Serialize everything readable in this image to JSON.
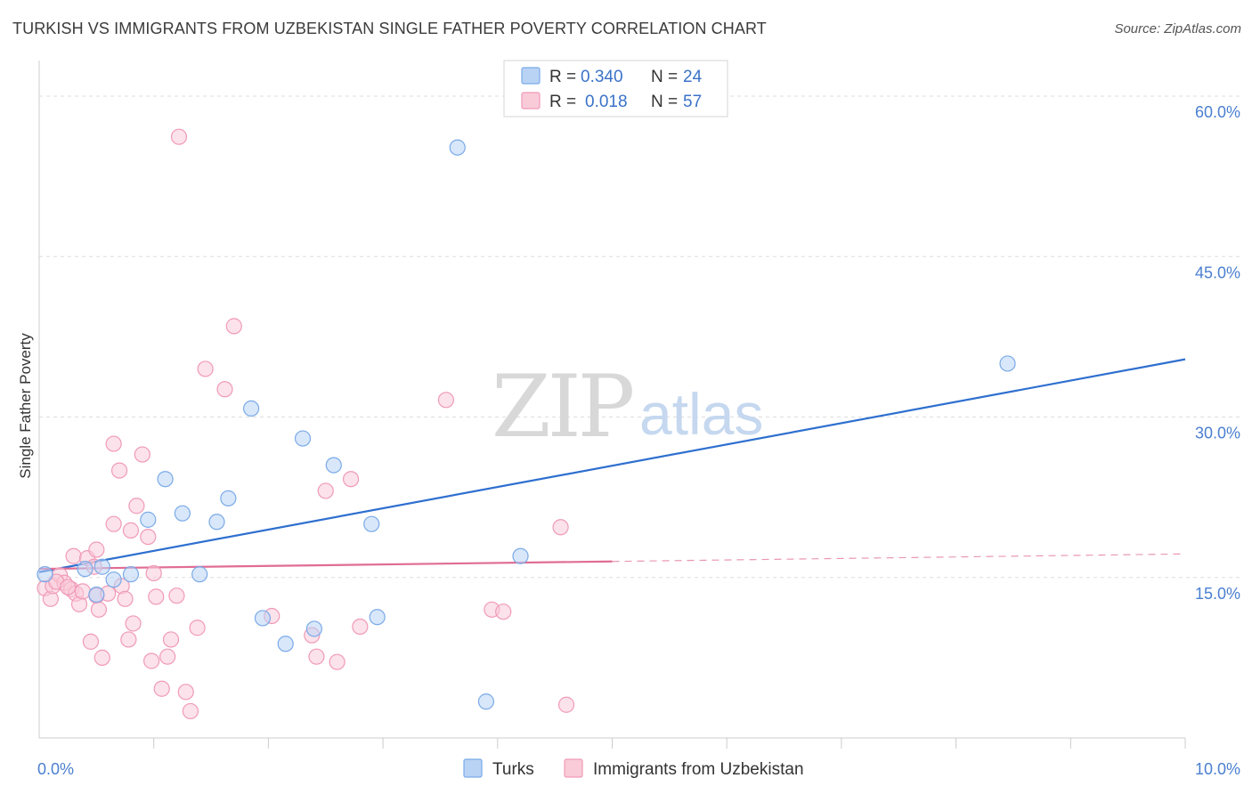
{
  "title": "TURKISH VS IMMIGRANTS FROM UZBEKISTAN SINGLE FATHER POVERTY CORRELATION CHART",
  "source": "Source: ZipAtlas.com",
  "watermark": {
    "zip": "ZIP",
    "atlas": "atlas"
  },
  "colors": {
    "turks": "#7aaae8",
    "turks_fill": "#b9d3f5",
    "turks_line": "#2e6fcf",
    "uzbek": "#f09ab8",
    "uzbek_fill": "#f9cbd9",
    "uzbek_line": "#e06c95",
    "grid": "#dddddd",
    "tick_label": "#4a7fd0"
  },
  "legend": {
    "rows": [
      {
        "r_label": "R = ",
        "r_value": "0.340",
        "n_label": "N = ",
        "n_value": "24"
      },
      {
        "r_label": "R = ",
        "r_value": "0.018",
        "n_label": "N = ",
        "n_value": "57"
      }
    ]
  },
  "chart_data": {
    "type": "scatter",
    "title": "TURKISH VS IMMIGRANTS FROM UZBEKISTAN SINGLE FATHER POVERTY CORRELATION CHART",
    "xlabel": "",
    "ylabel": "Single Father Poverty",
    "xlim": [
      0,
      10
    ],
    "ylim": [
      0,
      62.5
    ],
    "x_tick_labels": [
      {
        "value": 0,
        "label": "0.0%"
      },
      {
        "value": 10,
        "label": "10.0%"
      }
    ],
    "y_tick_labels": [
      {
        "value": 15,
        "label": "15.0%"
      },
      {
        "value": 30,
        "label": "30.0%"
      },
      {
        "value": 45,
        "label": "45.0%"
      },
      {
        "value": 60,
        "label": "60.0%"
      }
    ],
    "y_gridlines": [
      15,
      30,
      45,
      60
    ],
    "x_minor_ticks": [
      1,
      2,
      3,
      4,
      5,
      6,
      7,
      8,
      9
    ],
    "legend_placement": "top-center",
    "series": [
      {
        "name": "Turks",
        "points": [
          [
            0.05,
            15.3
          ],
          [
            0.4,
            15.8
          ],
          [
            0.55,
            16.0
          ],
          [
            0.5,
            13.4
          ],
          [
            0.65,
            14.8
          ],
          [
            0.8,
            15.3
          ],
          [
            0.95,
            20.4
          ],
          [
            1.1,
            24.2
          ],
          [
            1.25,
            21.0
          ],
          [
            1.4,
            15.3
          ],
          [
            1.55,
            20.2
          ],
          [
            1.65,
            22.4
          ],
          [
            1.85,
            30.8
          ],
          [
            1.95,
            11.2
          ],
          [
            2.15,
            8.8
          ],
          [
            2.3,
            28.0
          ],
          [
            2.4,
            10.2
          ],
          [
            2.57,
            25.5
          ],
          [
            2.9,
            20.0
          ],
          [
            2.95,
            11.3
          ],
          [
            3.65,
            55.2
          ],
          [
            3.9,
            3.4
          ],
          [
            4.2,
            17.0
          ],
          [
            8.45,
            35.0
          ]
        ],
        "trend": {
          "x": [
            0,
            10
          ],
          "y": [
            15.5,
            35.4
          ]
        }
      },
      {
        "name": "Immigrants from Uzbekistan",
        "points": [
          [
            0.05,
            14.0
          ],
          [
            0.1,
            13.0
          ],
          [
            0.12,
            14.2
          ],
          [
            0.18,
            15.2
          ],
          [
            0.22,
            14.5
          ],
          [
            0.28,
            13.9
          ],
          [
            0.3,
            17.0
          ],
          [
            0.32,
            13.5
          ],
          [
            0.35,
            12.5
          ],
          [
            0.38,
            13.7
          ],
          [
            0.42,
            16.8
          ],
          [
            0.45,
            9.0
          ],
          [
            0.48,
            16.0
          ],
          [
            0.5,
            13.3
          ],
          [
            0.5,
            17.6
          ],
          [
            0.52,
            12.0
          ],
          [
            0.55,
            7.5
          ],
          [
            0.6,
            13.5
          ],
          [
            0.65,
            20.0
          ],
          [
            0.65,
            27.5
          ],
          [
            0.7,
            25.0
          ],
          [
            0.72,
            14.2
          ],
          [
            0.75,
            13.0
          ],
          [
            0.78,
            9.2
          ],
          [
            0.8,
            19.4
          ],
          [
            0.82,
            10.7
          ],
          [
            0.85,
            21.7
          ],
          [
            0.9,
            26.5
          ],
          [
            0.95,
            18.8
          ],
          [
            0.98,
            7.2
          ],
          [
            1.0,
            15.4
          ],
          [
            1.02,
            13.2
          ],
          [
            1.07,
            4.6
          ],
          [
            1.12,
            7.6
          ],
          [
            1.15,
            9.2
          ],
          [
            1.2,
            13.3
          ],
          [
            1.22,
            56.2
          ],
          [
            1.28,
            4.3
          ],
          [
            1.32,
            2.5
          ],
          [
            1.38,
            10.3
          ],
          [
            1.45,
            34.5
          ],
          [
            1.62,
            32.6
          ],
          [
            1.7,
            38.5
          ],
          [
            2.03,
            11.4
          ],
          [
            2.38,
            9.6
          ],
          [
            2.42,
            7.6
          ],
          [
            2.5,
            23.1
          ],
          [
            2.6,
            7.1
          ],
          [
            2.72,
            24.2
          ],
          [
            2.8,
            10.4
          ],
          [
            3.55,
            31.6
          ],
          [
            3.95,
            12.0
          ],
          [
            4.05,
            11.8
          ],
          [
            4.55,
            19.7
          ],
          [
            4.6,
            3.1
          ],
          [
            0.15,
            14.6
          ],
          [
            0.25,
            14.1
          ]
        ],
        "trend": {
          "x": [
            0,
            5
          ],
          "y": [
            15.8,
            16.5
          ]
        },
        "trend_dashed": {
          "x": [
            5,
            10
          ],
          "y": [
            16.5,
            17.2
          ]
        }
      }
    ]
  }
}
